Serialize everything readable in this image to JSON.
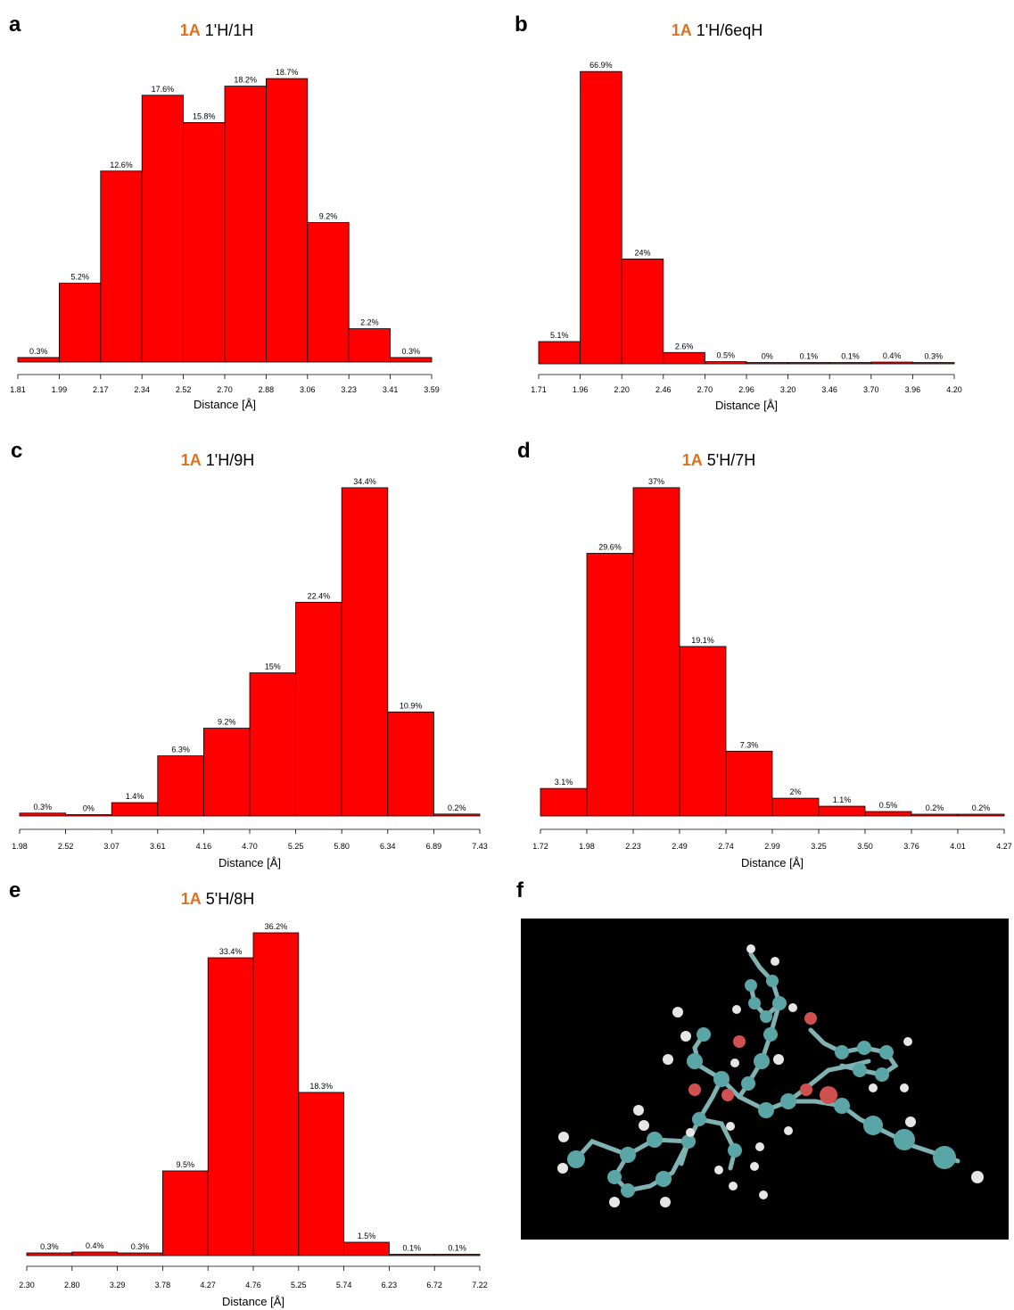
{
  "panels": [
    {
      "letter": "a",
      "title_tag": "1A",
      "title_text": "1'H/1H"
    },
    {
      "letter": "b",
      "title_tag": "1A",
      "title_text": "1'H/6eqH"
    },
    {
      "letter": "c",
      "title_tag": "1A",
      "title_text": "1'H/9H"
    },
    {
      "letter": "d",
      "title_tag": "1A",
      "title_text": "5'H/7H"
    },
    {
      "letter": "e",
      "title_tag": "1A",
      "title_text": "5'H/8H"
    },
    {
      "letter": "f"
    }
  ],
  "colors": {
    "bar": "#ff0000",
    "bar_stroke": "#000000",
    "title_tag": "#e0701a",
    "molecule_bg": "#000000"
  },
  "chart_data": [
    {
      "type": "bar",
      "title": "1A 1'H/1H",
      "xlabel": "Distance [Å]",
      "edges": [
        "1.81",
        "1.99",
        "2.17",
        "2.34",
        "2.52",
        "2.70",
        "2.88",
        "3.06",
        "3.23",
        "3.41",
        "3.59"
      ],
      "values": [
        0.3,
        5.2,
        12.6,
        17.6,
        15.8,
        18.2,
        18.7,
        9.2,
        2.2,
        0.3
      ],
      "labels": [
        "0.3%",
        "5.2%",
        "12.6%",
        "17.6%",
        "15.8%",
        "18.2%",
        "18.7%",
        "9.2%",
        "2.2%",
        "0.3%"
      ]
    },
    {
      "type": "bar",
      "title": "1A 1'H/6eqH",
      "xlabel": "Distance [Å]",
      "edges": [
        "1.71",
        "1.96",
        "2.20",
        "2.46",
        "2.70",
        "2.96",
        "3.20",
        "3.46",
        "3.70",
        "3.96",
        "4.20"
      ],
      "values": [
        5.1,
        66.9,
        24,
        2.6,
        0.5,
        0,
        0.1,
        0.1,
        0.4,
        0.3
      ],
      "labels": [
        "5.1%",
        "66.9%",
        "24%",
        "2.6%",
        "0.5%",
        "0%",
        "0.1%",
        "0.1%",
        "0.4%",
        "0.3%"
      ]
    },
    {
      "type": "bar",
      "title": "1A 1'H/9H",
      "xlabel": "Distance [Å]",
      "edges": [
        "1.98",
        "2.52",
        "3.07",
        "3.61",
        "4.16",
        "4.70",
        "5.25",
        "5.80",
        "6.34",
        "6.89",
        "7.43"
      ],
      "values": [
        0.3,
        0,
        1.4,
        6.3,
        9.2,
        15,
        22.4,
        34.4,
        10.9,
        0.2
      ],
      "labels": [
        "0.3%",
        "0%",
        "1.4%",
        "6.3%",
        "9.2%",
        "15%",
        "22.4%",
        "34.4%",
        "10.9%",
        "0.2%"
      ]
    },
    {
      "type": "bar",
      "title": "1A 5'H/7H",
      "xlabel": "Distance [Å]",
      "edges": [
        "1.72",
        "1.98",
        "2.23",
        "2.49",
        "2.74",
        "2.99",
        "3.25",
        "3.50",
        "3.76",
        "4.01",
        "4.27"
      ],
      "values": [
        3.1,
        29.6,
        37,
        19.1,
        7.3,
        2,
        1.1,
        0.5,
        0.2,
        0.2
      ],
      "labels": [
        "3.1%",
        "29.6%",
        "37%",
        "19.1%",
        "7.3%",
        "2%",
        "1.1%",
        "0.5%",
        "0.2%",
        "0.2%"
      ]
    },
    {
      "type": "bar",
      "title": "1A 5'H/8H",
      "xlabel": "Distance [Å]",
      "edges": [
        "2.30",
        "2.80",
        "3.29",
        "3.78",
        "4.27",
        "4.76",
        "5.25",
        "5.74",
        "6.23",
        "6.72",
        "7.22"
      ],
      "values": [
        0.3,
        0.4,
        0.3,
        9.5,
        33.4,
        36.2,
        18.3,
        1.5,
        0.1,
        0.1
      ],
      "labels": [
        "0.3%",
        "0.4%",
        "0.3%",
        "9.5%",
        "33.4%",
        "36.2%",
        "18.3%",
        "1.5%",
        "0.1%",
        "0.1%"
      ]
    }
  ]
}
